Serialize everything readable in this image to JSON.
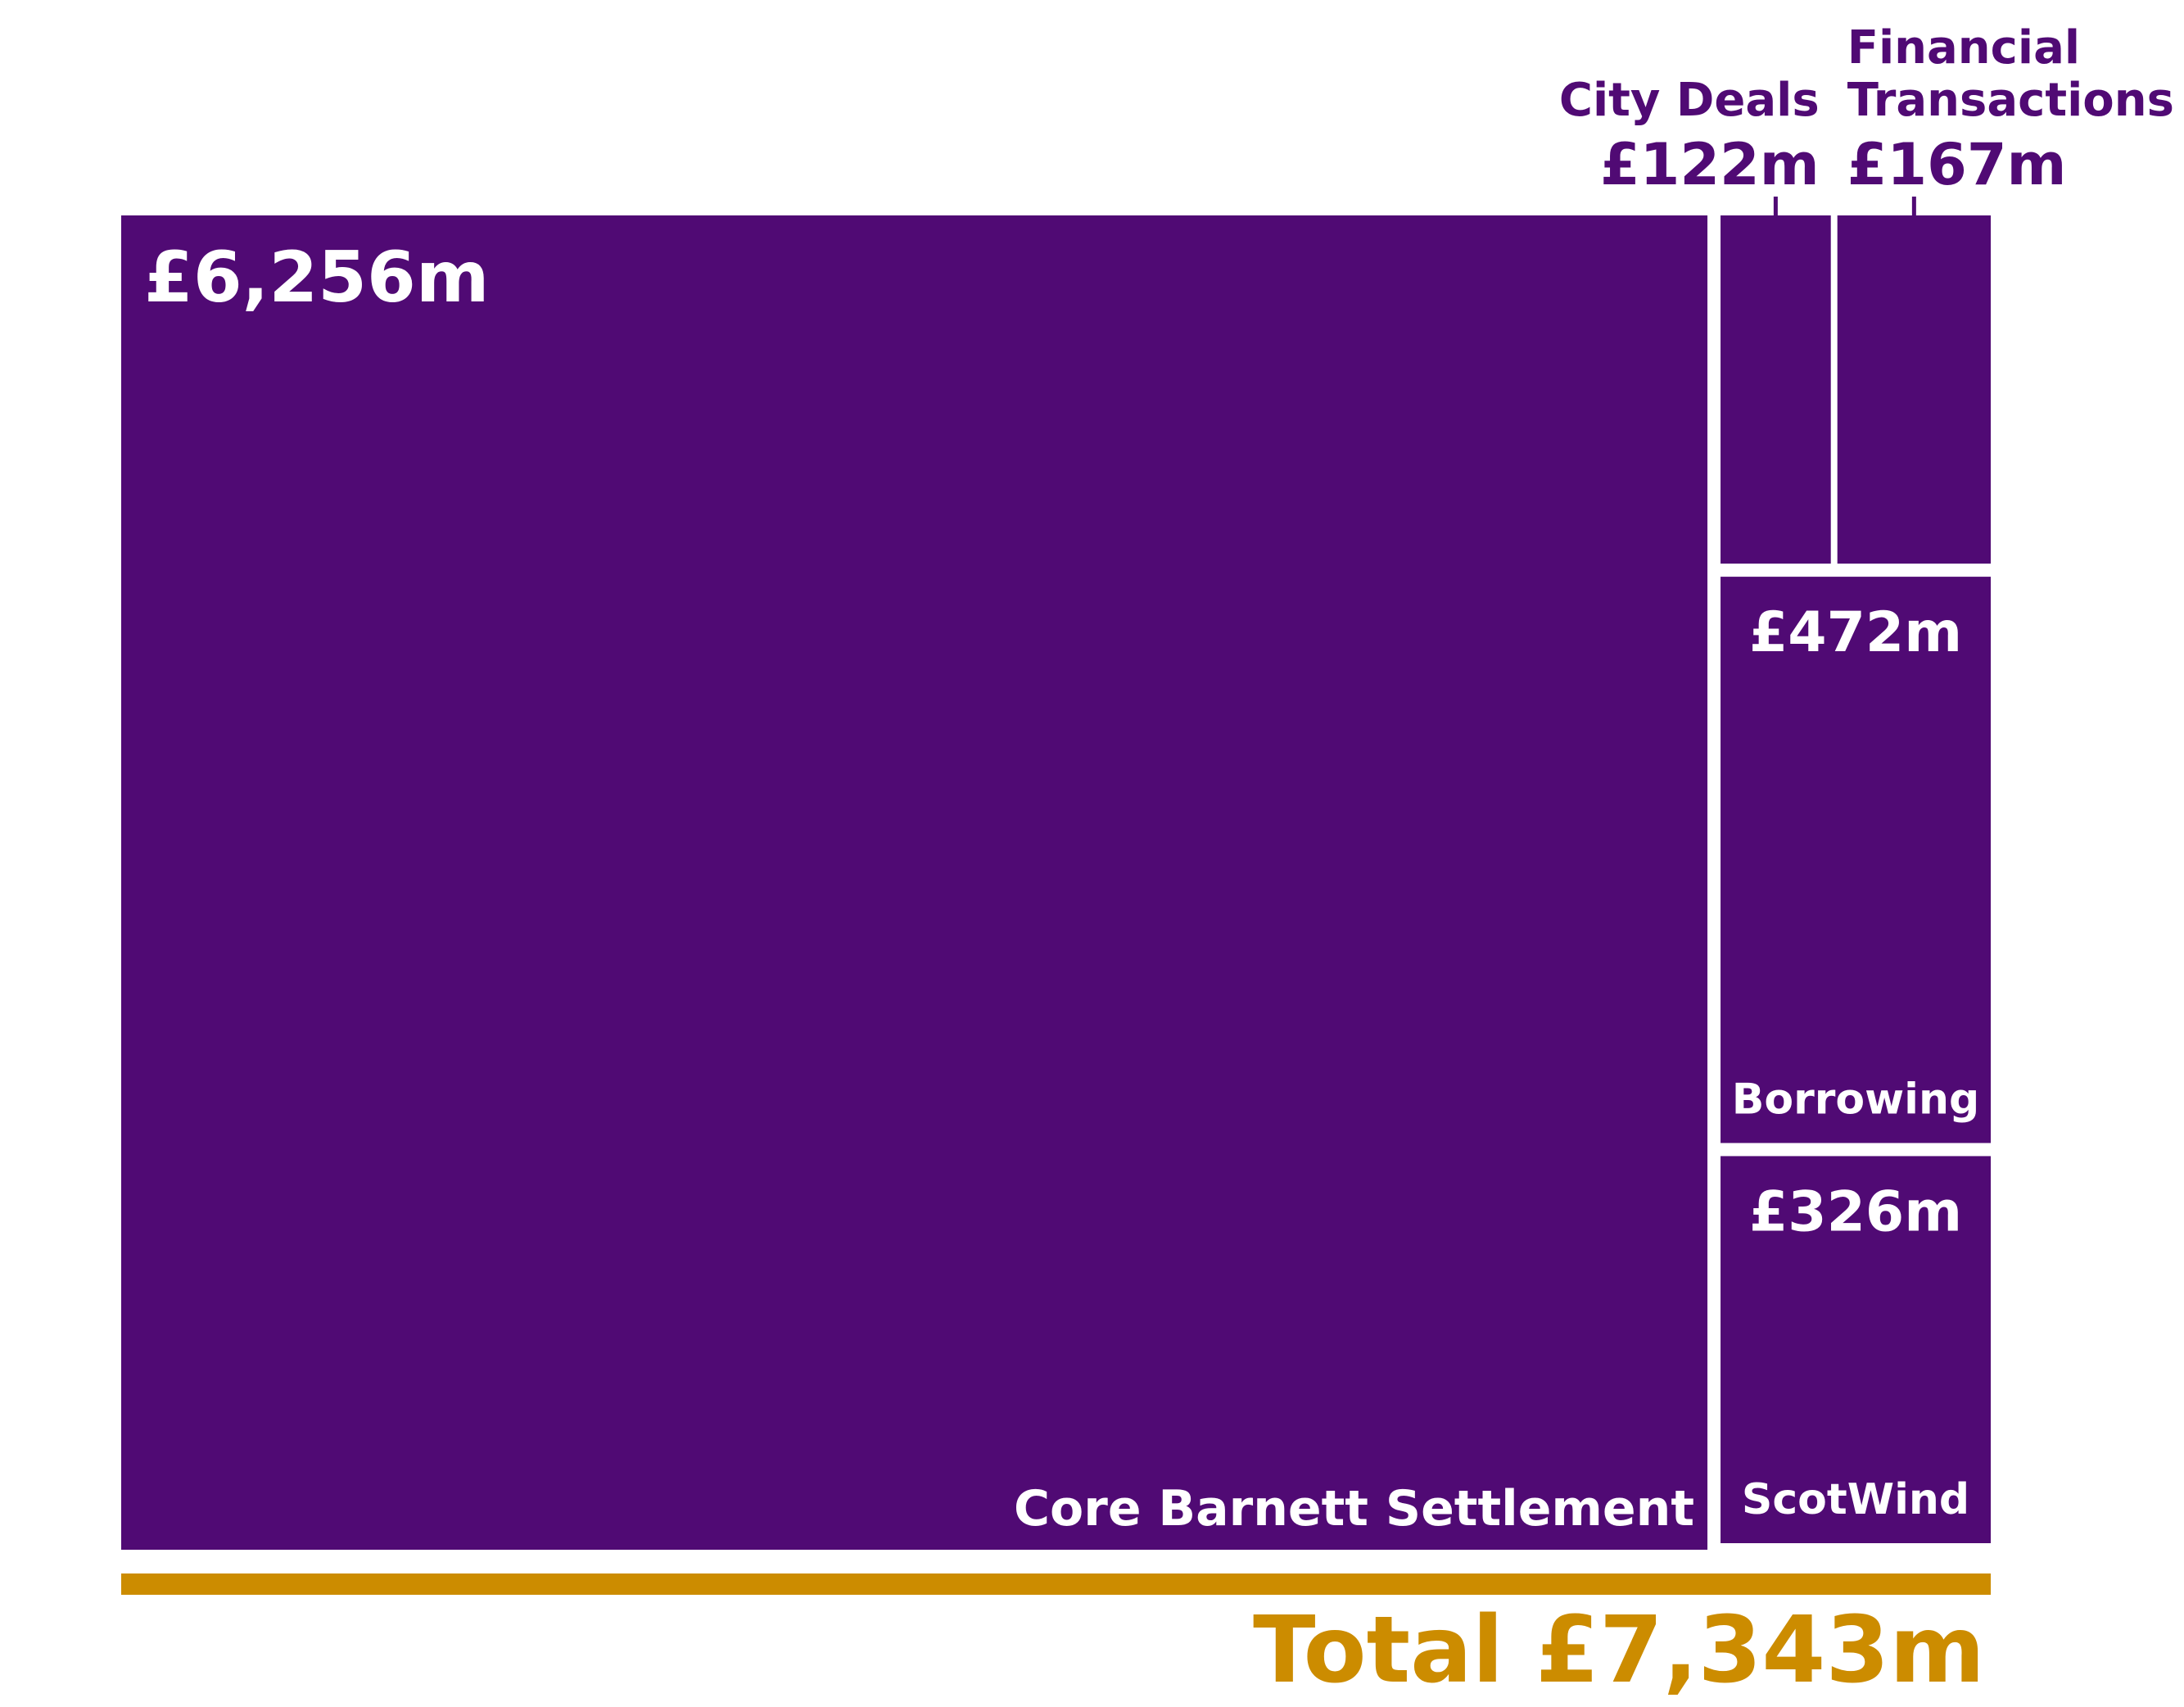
{
  "chart_data": {
    "type": "treemap",
    "categories": [
      "Core Barnett Settlement",
      "City Deals",
      "Financial Transactions",
      "Borrowing",
      "ScotWind"
    ],
    "values": [
      6256,
      122,
      167,
      472,
      326
    ],
    "value_labels": [
      "£6,256m",
      "£122m",
      "£167m",
      "£472m",
      "£326m"
    ],
    "color": "#500a74",
    "total_label": "Total £7,343m",
    "total_color": "#cc8c00"
  }
}
